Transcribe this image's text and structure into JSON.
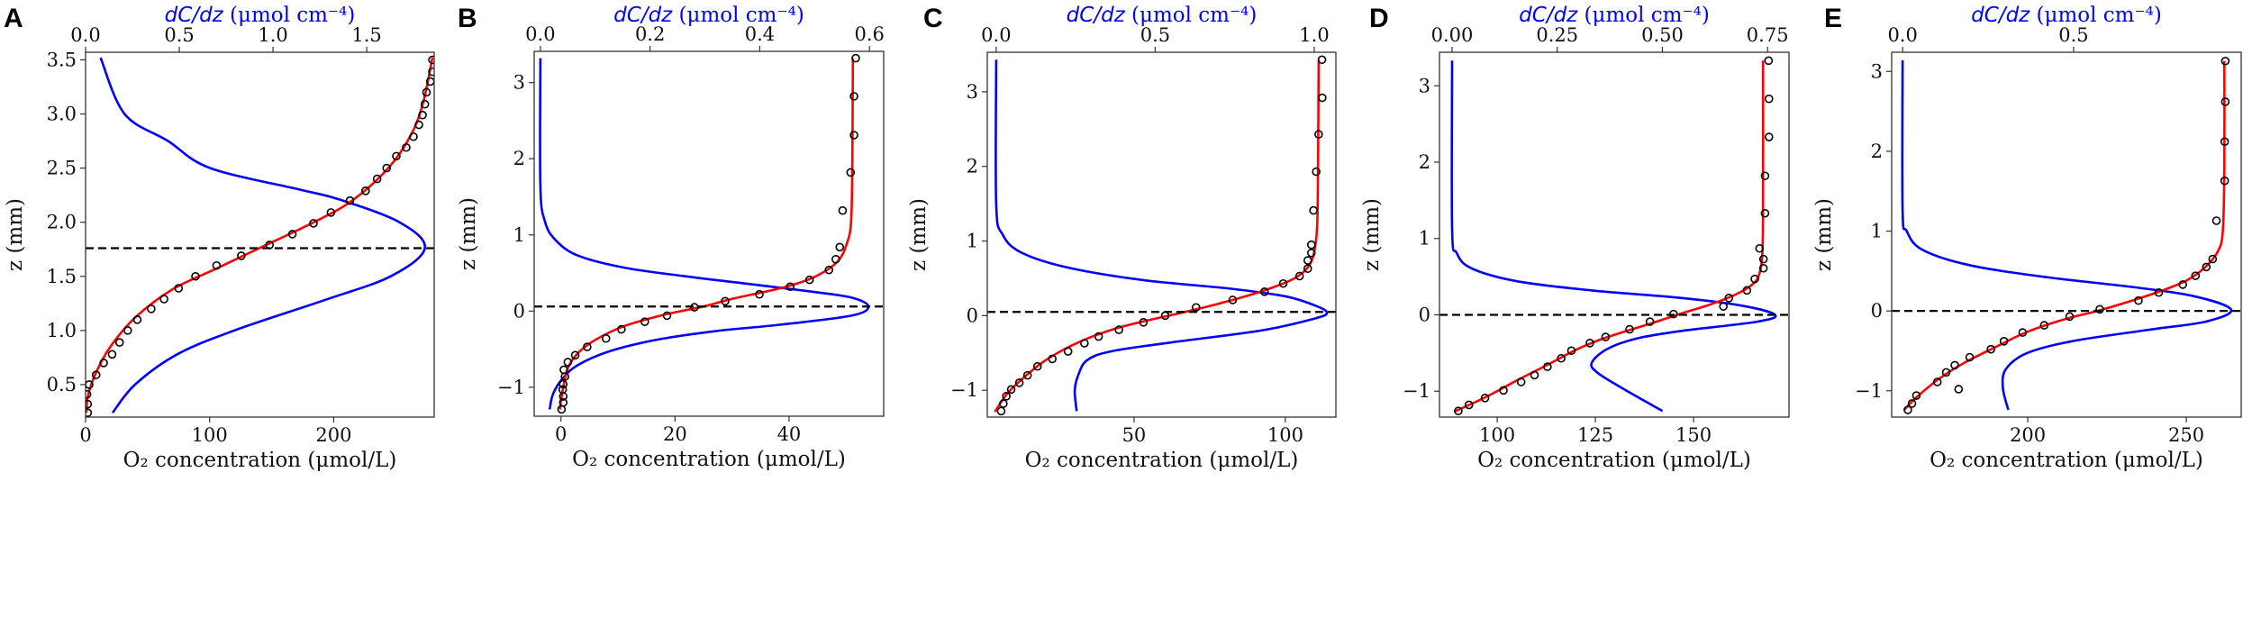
{
  "colors": {
    "fit": "#ff0000",
    "gradient": "#0000ff",
    "measured": "#000000",
    "dashed": "#000000",
    "top_axis_label": "#0000ff"
  },
  "chart_data": [
    {
      "panel": "A",
      "type": "line",
      "xlabel": "O₂ concentration (μmol/L)",
      "top_xlabel_var": "dC/dz",
      "top_xlabel_unit": " (μmol cm⁻⁴)",
      "ylabel": "z (mm)",
      "xlim": [
        0,
        281
      ],
      "top_xlim": [
        0,
        1.86
      ],
      "ylim": [
        0.2,
        3.57
      ],
      "xticks": [
        0,
        100,
        200
      ],
      "xtick_labels": [
        "0",
        "100",
        "200"
      ],
      "top_xticks": [
        0,
        0.5,
        1.0,
        1.5
      ],
      "top_xtick_labels": [
        "0.0",
        "0.5",
        "1.0",
        "1.5"
      ],
      "yticks": [
        0.5,
        1.0,
        1.5,
        2.0,
        2.5,
        3.0,
        3.5
      ],
      "ytick_labels": [
        "0.5",
        "1.0",
        "1.5",
        "2.0",
        "2.5",
        "3.0",
        "3.5"
      ],
      "dashed_z": 1.76,
      "measured": {
        "C": [
          279.6,
          279.6,
          277.9,
          274.8,
          273.5,
          271.6,
          268.7,
          264.3,
          258.5,
          250.5,
          242.7,
          235.0,
          225.7,
          213.1,
          197.8,
          183.7,
          166.7,
          148.3,
          125.5,
          105.6,
          88.6,
          75.0,
          63.3,
          52.9,
          41.7,
          34.0,
          27.4,
          21.4,
          14.6,
          8.5,
          2.9,
          1.2,
          1.7,
          1.7
        ],
        "z": [
          3.5,
          3.39,
          3.3,
          3.2,
          3.09,
          2.99,
          2.9,
          2.79,
          2.69,
          2.61,
          2.5,
          2.4,
          2.29,
          2.2,
          2.09,
          1.99,
          1.89,
          1.79,
          1.69,
          1.6,
          1.5,
          1.39,
          1.29,
          1.2,
          1.1,
          1.0,
          0.89,
          0.78,
          0.7,
          0.59,
          0.5,
          0.41,
          0.32,
          0.24
        ]
      },
      "fit": {
        "C": [
          279.6,
          272,
          262,
          244,
          215,
          184,
          140,
          105,
          70,
          40,
          20,
          8,
          2,
          0.5
        ],
        "z": [
          3.52,
          3.1,
          2.8,
          2.5,
          2.2,
          2.0,
          1.76,
          1.57,
          1.38,
          1.12,
          0.85,
          0.6,
          0.4,
          0.24
        ]
      },
      "gradient": {
        "dCdz": [
          0.08,
          0.208,
          0.44,
          0.665,
          1.146,
          1.354,
          1.675,
          1.81,
          1.627,
          1.274,
          0.793,
          0.489,
          0.264,
          0.144
        ],
        "z": [
          3.52,
          3.0,
          2.75,
          2.5,
          2.3,
          2.21,
          2.0,
          1.76,
          1.5,
          1.28,
          1.0,
          0.78,
          0.5,
          0.24
        ]
      }
    },
    {
      "panel": "B",
      "type": "line",
      "xlabel": "O₂ concentration (μmol/L)",
      "top_xlabel_var": "dC/dz",
      "top_xlabel_unit": " (μmol cm⁻⁴)",
      "ylabel": "z (mm)",
      "xlim": [
        -4.7,
        56.6
      ],
      "top_xlim": [
        -0.0113,
        0.626
      ],
      "ylim": [
        -1.38,
        3.41
      ],
      "xticks": [
        0,
        20,
        40
      ],
      "xtick_labels": [
        "0",
        "20",
        "40"
      ],
      "top_xticks": [
        0,
        0.2,
        0.4,
        0.6
      ],
      "top_xtick_labels": [
        "0.0",
        "0.2",
        "0.4",
        "0.6"
      ],
      "yticks": [
        -1,
        0,
        1,
        2,
        3
      ],
      "ytick_labels": [
        "−1",
        "0",
        "1",
        "2",
        "3"
      ],
      "dashed_z": 0.06,
      "measured": {
        "C": [
          51.7,
          51.4,
          51.4,
          50.8,
          49.4,
          48.9,
          48.2,
          47.0,
          43.6,
          40.2,
          34.8,
          28.8,
          23.4,
          18.6,
          14.7,
          10.6,
          7.9,
          4.6,
          2.5,
          1.2,
          0.5,
          0.7,
          0.4,
          0.3,
          0.4,
          0.4,
          0.1
        ],
        "z": [
          3.32,
          2.82,
          2.31,
          1.82,
          1.32,
          0.84,
          0.68,
          0.54,
          0.41,
          0.32,
          0.22,
          0.13,
          0.05,
          -0.06,
          -0.14,
          -0.24,
          -0.36,
          -0.47,
          -0.58,
          -0.67,
          -0.77,
          -0.86,
          -0.96,
          -1.03,
          -1.12,
          -1.2,
          -1.29
        ]
      },
      "fit": {
        "C": [
          51.2,
          51.1,
          50.9,
          50.2,
          48.5,
          44.5,
          39,
          30,
          25,
          18,
          11,
          6,
          3,
          1.2,
          0.4,
          -0.2
        ],
        "z": [
          3.32,
          2.0,
          1.2,
          0.9,
          0.65,
          0.45,
          0.31,
          0.16,
          0.06,
          -0.05,
          -0.2,
          -0.38,
          -0.55,
          -0.75,
          -1.0,
          -1.29
        ]
      },
      "gradient": {
        "dCdz": [
          0.0,
          0.0,
          0.0085,
          0.028,
          0.068,
          0.153,
          0.266,
          0.38,
          0.493,
          0.567,
          0.598,
          0.567,
          0.436,
          0.323,
          0.21,
          0.125,
          0.068,
          0.04,
          0.023,
          0.017
        ],
        "z": [
          3.32,
          1.64,
          1.17,
          0.93,
          0.73,
          0.57,
          0.455,
          0.356,
          0.257,
          0.178,
          0.06,
          -0.06,
          -0.18,
          -0.26,
          -0.38,
          -0.53,
          -0.71,
          -0.89,
          -1.09,
          -1.29
        ]
      }
    },
    {
      "panel": "C",
      "type": "line",
      "xlabel": "O₂ concentration (μmol/L)",
      "top_xlabel_var": "dC/dz",
      "top_xlabel_unit": " (μmol cm⁻⁴)",
      "ylabel": "z (mm)",
      "xlim": [
        1.5,
        116.7
      ],
      "top_xlim": [
        -0.028,
        1.068
      ],
      "ylim": [
        -1.36,
        3.53
      ],
      "xticks": [
        50,
        100
      ],
      "xtick_labels": [
        "50",
        "100"
      ],
      "top_xticks": [
        0,
        0.5,
        1.0
      ],
      "top_xtick_labels": [
        "0.0",
        "0.5",
        "1.0"
      ],
      "yticks": [
        -1,
        0,
        1,
        2,
        3
      ],
      "ytick_labels": [
        "−1",
        "0",
        "1",
        "2",
        "3"
      ],
      "dashed_z": 0.05,
      "measured": {
        "C": [
          112.1,
          112.2,
          111.0,
          110.2,
          109.3,
          108.6,
          108.6,
          107.4,
          107.4,
          104.7,
          99.3,
          93.1,
          82.6,
          70.5,
          60.3,
          53.1,
          45.0,
          38.3,
          33.6,
          28.2,
          23.0,
          18.1,
          14.8,
          12.1,
          9.4,
          7.8,
          6.8,
          6.1
        ],
        "z": [
          3.43,
          2.92,
          2.43,
          1.93,
          1.41,
          0.95,
          0.84,
          0.74,
          0.63,
          0.53,
          0.43,
          0.32,
          0.21,
          0.11,
          0.0,
          -0.09,
          -0.19,
          -0.28,
          -0.37,
          -0.48,
          -0.58,
          -0.68,
          -0.8,
          -0.9,
          -0.99,
          -1.08,
          -1.18,
          -1.28
        ]
      },
      "fit": {
        "C": [
          111,
          110.8,
          110.5,
          109.5,
          107.5,
          103,
          96,
          87,
          78,
          67,
          56,
          45,
          35,
          27,
          20,
          13,
          8,
          4
        ],
        "z": [
          3.43,
          2.0,
          1.2,
          0.85,
          0.65,
          0.5,
          0.38,
          0.26,
          0.16,
          0.05,
          -0.05,
          -0.16,
          -0.3,
          -0.45,
          -0.62,
          -0.85,
          -1.05,
          -1.29
        ]
      },
      "gradient": {
        "dCdz": [
          0,
          0,
          0.02,
          0.077,
          0.219,
          0.455,
          0.738,
          0.908,
          1.0,
          1.04,
          1.0,
          0.832,
          0.549,
          0.36,
          0.285,
          0.257,
          0.247,
          0.253
        ],
        "z": [
          3.43,
          1.49,
          1.09,
          0.85,
          0.65,
          0.48,
          0.36,
          0.26,
          0.14,
          0.04,
          -0.04,
          -0.2,
          -0.36,
          -0.48,
          -0.6,
          -0.81,
          -1.01,
          -1.28
        ]
      }
    },
    {
      "panel": "D",
      "type": "line",
      "xlabel": "O₂ concentration (μmol/L)",
      "top_xlabel_var": "dC/dz",
      "top_xlabel_unit": " (μmol cm⁻⁴)",
      "ylabel": "z (mm)",
      "xlim": [
        85.3,
        174.3
      ],
      "top_xlim": [
        -0.03,
        0.801
      ],
      "ylim": [
        -1.34,
        3.44
      ],
      "xticks": [
        100,
        125,
        150
      ],
      "xtick_labels": [
        "100",
        "125",
        "150"
      ],
      "top_xticks": [
        0,
        0.25,
        0.5,
        0.75
      ],
      "top_xtick_labels": [
        "0.00",
        "0.25",
        "0.50",
        "0.75"
      ],
      "yticks": [
        -1,
        0,
        1,
        2,
        3
      ],
      "ytick_labels": [
        "−1",
        "0",
        "1",
        "2",
        "3"
      ],
      "dashed_z": 0.0,
      "measured": {
        "C": [
          169.1,
          169.2,
          169.2,
          168.2,
          168.2,
          166.8,
          167.8,
          167.8,
          165.6,
          163.6,
          159.0,
          157.6,
          144.9,
          138.9,
          133.7,
          127.6,
          123.6,
          118.9,
          116.3,
          112.8,
          109.5,
          106.1,
          101.6,
          96.9,
          92.8,
          90.1
        ],
        "z": [
          3.33,
          2.83,
          2.33,
          1.82,
          1.33,
          0.87,
          0.73,
          0.61,
          0.47,
          0.32,
          0.22,
          0.11,
          0.01,
          -0.09,
          -0.19,
          -0.29,
          -0.37,
          -0.47,
          -0.57,
          -0.68,
          -0.79,
          -0.88,
          -0.99,
          -1.09,
          -1.18,
          -1.26
        ]
      },
      "fit": {
        "C": [
          167.7,
          167.7,
          167.5,
          166.5,
          164,
          160,
          154,
          147,
          140,
          133,
          126,
          120,
          113,
          105,
          97,
          89
        ],
        "z": [
          3.33,
          1.5,
          0.8,
          0.5,
          0.36,
          0.25,
          0.13,
          0.02,
          -0.1,
          -0.21,
          -0.33,
          -0.46,
          -0.65,
          -0.86,
          -1.08,
          -1.27
        ]
      },
      "gradient": {
        "dCdz": [
          0,
          0,
          0.011,
          0.046,
          0.154,
          0.332,
          0.546,
          0.689,
          0.768,
          0.725,
          0.546,
          0.439,
          0.368,
          0.332,
          0.346,
          0.404,
          0.5
        ],
        "z": [
          3.33,
          1.13,
          0.81,
          0.61,
          0.44,
          0.32,
          0.22,
          0.12,
          0.0,
          -0.09,
          -0.21,
          -0.31,
          -0.45,
          -0.63,
          -0.76,
          -0.96,
          -1.26
        ]
      }
    },
    {
      "panel": "E",
      "type": "line",
      "xlabel": "O₂ concentration (μmol/L)",
      "top_xlabel_var": "dC/dz",
      "top_xlabel_unit": " (μmol cm⁻⁴)",
      "ylabel": "z (mm)",
      "xlim": [
        157.1,
        267.3
      ],
      "top_xlim": [
        -0.032,
        0.99
      ],
      "ylim": [
        -1.33,
        3.24
      ],
      "xticks": [
        200,
        250
      ],
      "xtick_labels": [
        "200",
        "250"
      ],
      "top_xticks": [
        0,
        0.5
      ],
      "top_xtick_labels": [
        "0.0",
        "0.5"
      ],
      "yticks": [
        -1,
        0,
        1,
        2,
        3
      ],
      "ytick_labels": [
        "−1",
        "0",
        "1",
        "2",
        "3"
      ],
      "dashed_z": 0.0,
      "measured": {
        "C": [
          262.3,
          262.3,
          262.1,
          262.1,
          259.5,
          258.3,
          256.3,
          252.9,
          248.9,
          241.3,
          234.9,
          222.7,
          213.2,
          205.2,
          198.4,
          192.5,
          188.4,
          181.7,
          177.0,
          174.3,
          171.5,
          178.2,
          164.9,
          163.5,
          162.2
        ],
        "z": [
          3.13,
          2.62,
          2.12,
          1.63,
          1.13,
          0.65,
          0.55,
          0.44,
          0.33,
          0.23,
          0.13,
          0.02,
          -0.07,
          -0.18,
          -0.27,
          -0.38,
          -0.48,
          -0.58,
          -0.68,
          -0.77,
          -0.89,
          -0.98,
          -1.06,
          -1.16,
          -1.24
        ]
      },
      "fit": {
        "C": [
          262,
          262,
          261.5,
          260,
          256,
          250,
          242,
          233,
          222,
          212,
          200,
          190,
          180,
          172,
          165,
          161
        ],
        "z": [
          3.13,
          1.8,
          1.0,
          0.75,
          0.55,
          0.38,
          0.25,
          0.13,
          0.0,
          -0.1,
          -0.26,
          -0.45,
          -0.65,
          -0.85,
          -1.08,
          -1.24
        ]
      },
      "gradient": {
        "dCdz": [
          0,
          0,
          0.012,
          0.056,
          0.188,
          0.407,
          0.67,
          0.846,
          0.96,
          0.89,
          0.714,
          0.495,
          0.363,
          0.302,
          0.293,
          0.309
        ],
        "z": [
          3.14,
          1.26,
          1.0,
          0.77,
          0.58,
          0.43,
          0.3,
          0.19,
          0.02,
          -0.13,
          -0.24,
          -0.38,
          -0.53,
          -0.73,
          -0.96,
          -1.24
        ]
      }
    }
  ]
}
